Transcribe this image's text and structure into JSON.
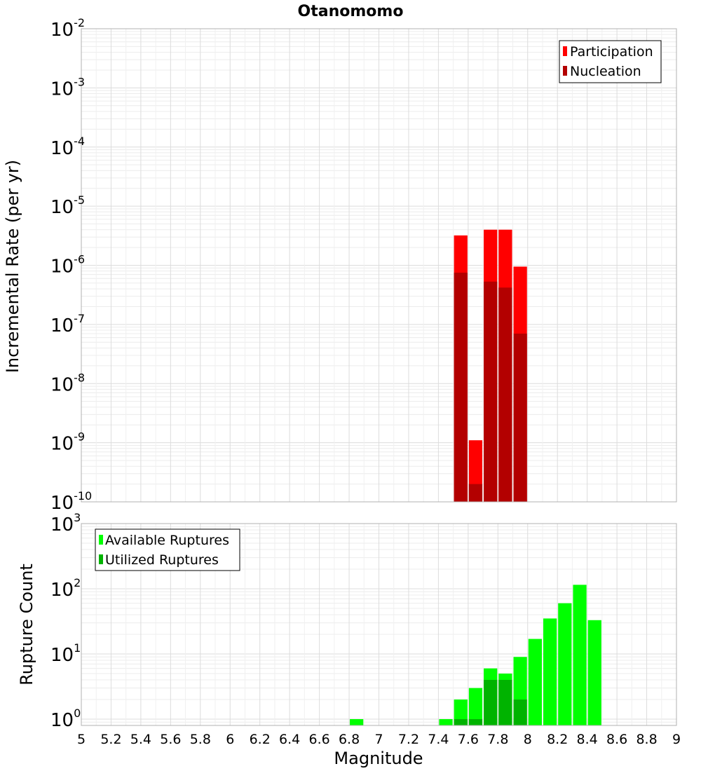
{
  "chart_data": [
    {
      "type": "bar",
      "title": "Otanomomo",
      "xlabel": "",
      "ylabel": "Incremental Rate (per yr)",
      "yscale": "log",
      "xlim": [
        5,
        9
      ],
      "ylim": [
        1e-10,
        0.01
      ],
      "grid": true,
      "legend_position": "top-right",
      "ytick_labels": [
        {
          "base": "10",
          "exp": "-10",
          "value": 1e-10
        },
        {
          "base": "10",
          "exp": "-9",
          "value": 1e-09
        },
        {
          "base": "10",
          "exp": "-8",
          "value": 1e-08
        },
        {
          "base": "10",
          "exp": "-7",
          "value": 1e-07
        },
        {
          "base": "10",
          "exp": "-6",
          "value": 1e-06
        },
        {
          "base": "10",
          "exp": "-5",
          "value": 1e-05
        },
        {
          "base": "10",
          "exp": "-4",
          "value": 0.0001
        },
        {
          "base": "10",
          "exp": "-3",
          "value": 0.001
        },
        {
          "base": "10",
          "exp": "-2",
          "value": 0.01
        }
      ],
      "series": [
        {
          "name": "Participation",
          "color": "#ff0000",
          "x": [
            7.55,
            7.65,
            7.75,
            7.85,
            7.95
          ],
          "values": [
            3.2e-06,
            1.1e-09,
            4e-06,
            4e-06,
            9.5e-07
          ]
        },
        {
          "name": "Nucleation",
          "color": "#b30000",
          "x": [
            7.55,
            7.65,
            7.75,
            7.85,
            7.95
          ],
          "values": [
            7.5e-07,
            2e-10,
            5.3e-07,
            4.2e-07,
            7e-08
          ]
        }
      ]
    },
    {
      "type": "bar",
      "xlabel": "Magnitude",
      "ylabel": "Rupture Count",
      "yscale": "log",
      "xlim": [
        5,
        9
      ],
      "ylim": [
        0.8,
        1000
      ],
      "grid": true,
      "legend_position": "top-left",
      "xtick_labels": [
        "5",
        "5.2",
        "5.4",
        "5.6",
        "5.8",
        "6",
        "6.2",
        "6.4",
        "6.6",
        "6.8",
        "7",
        "7.2",
        "7.4",
        "7.6",
        "7.8",
        "8",
        "8.2",
        "8.4",
        "8.6",
        "8.8",
        "9"
      ],
      "ytick_labels": [
        {
          "base": "10",
          "exp": "0",
          "value": 1
        },
        {
          "base": "10",
          "exp": "1",
          "value": 10
        },
        {
          "base": "10",
          "exp": "2",
          "value": 100
        },
        {
          "base": "10",
          "exp": "3",
          "value": 1000
        }
      ],
      "series": [
        {
          "name": "Available Ruptures",
          "color": "#00ff00",
          "x": [
            6.85,
            7.45,
            7.55,
            7.65,
            7.75,
            7.85,
            7.95,
            8.05,
            8.15,
            8.25,
            8.35,
            8.45
          ],
          "values": [
            1,
            1,
            2,
            3,
            6,
            5,
            9,
            17,
            35,
            60,
            115,
            33
          ]
        },
        {
          "name": "Utilized Ruptures",
          "color": "#00b300",
          "x": [
            7.55,
            7.65,
            7.75,
            7.85,
            7.95
          ],
          "values": [
            1,
            1,
            4,
            4,
            2
          ]
        }
      ]
    }
  ]
}
